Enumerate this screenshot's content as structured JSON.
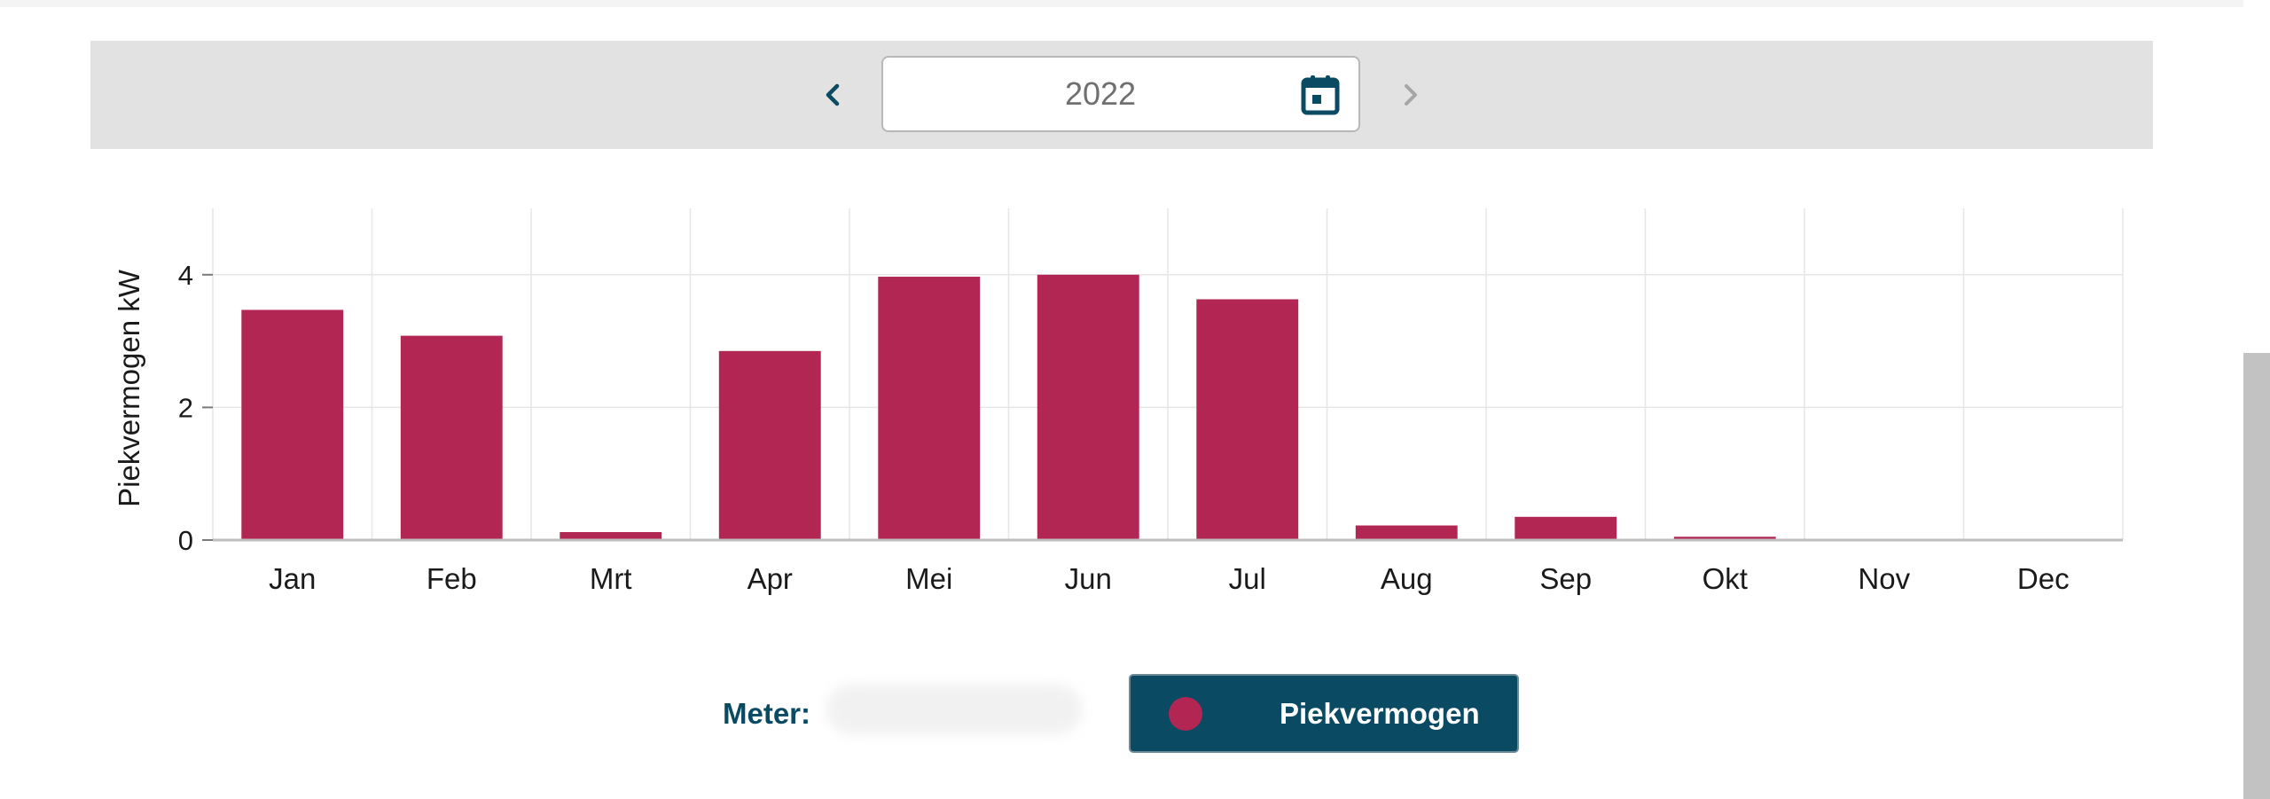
{
  "date_picker": {
    "year": "2022",
    "prev_icon": "chevron-left-icon",
    "next_icon": "chevron-right-icon",
    "calendar_icon": "calendar-icon"
  },
  "chart_data": {
    "type": "bar",
    "title": "",
    "xlabel": "",
    "ylabel": "Piekvermogen kW",
    "categories": [
      "Jan",
      "Feb",
      "Mrt",
      "Apr",
      "Mei",
      "Jun",
      "Jul",
      "Aug",
      "Sep",
      "Okt",
      "Nov",
      "Dec"
    ],
    "series": [
      {
        "name": "Piekvermogen",
        "values": [
          3.47,
          3.08,
          0.12,
          2.85,
          3.97,
          4.0,
          3.63,
          0.22,
          0.35,
          0.05,
          0,
          0
        ],
        "color": "#b12653"
      }
    ],
    "ylim": [
      0,
      5
    ],
    "yticks": [
      0,
      2,
      4
    ],
    "grid": true
  },
  "footer": {
    "meter_label": "Meter:",
    "legend_label": "Piekvermogen"
  },
  "colors": {
    "bar": "#b12653",
    "accent": "#0b4a63",
    "date_bar_bg": "#e2e2e2"
  }
}
